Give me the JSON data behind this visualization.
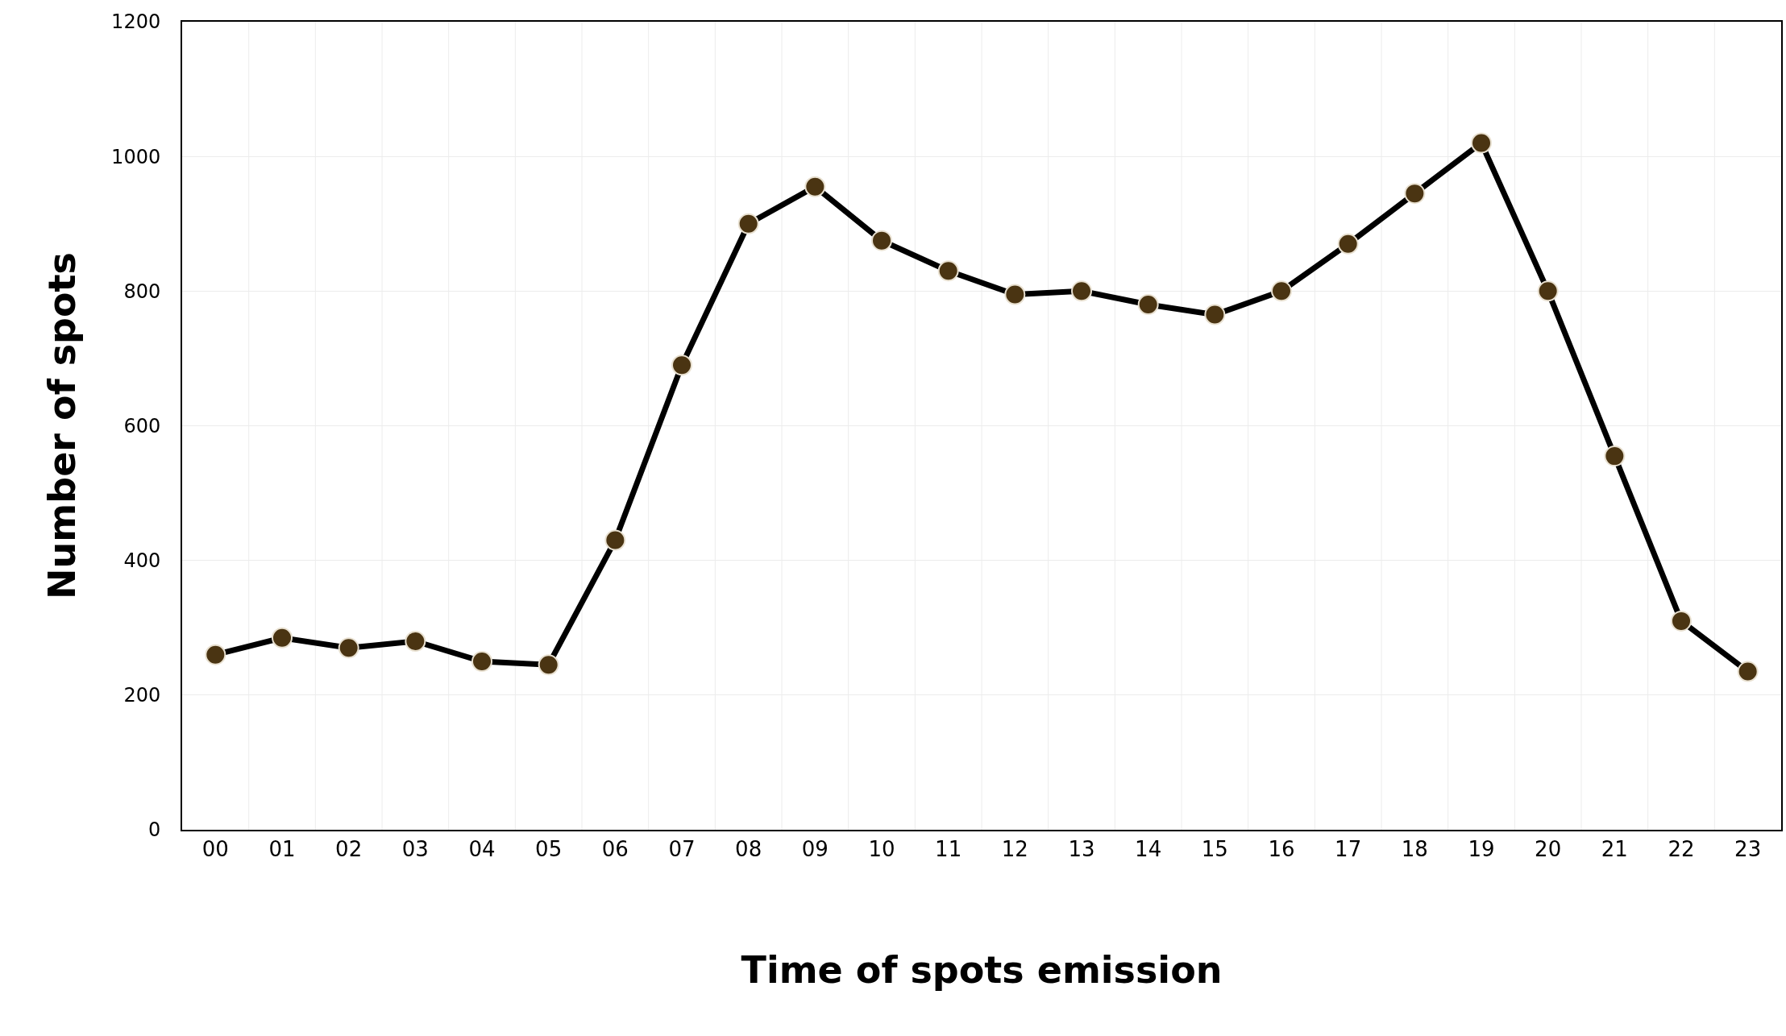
{
  "chart_data": {
    "type": "line",
    "xlabel": "Time of spots emission",
    "ylabel": "Number of spots",
    "categories": [
      "00",
      "01",
      "02",
      "03",
      "04",
      "05",
      "06",
      "07",
      "08",
      "09",
      "10",
      "11",
      "12",
      "13",
      "14",
      "15",
      "16",
      "17",
      "18",
      "19",
      "20",
      "21",
      "22",
      "23"
    ],
    "series": [
      {
        "color": "#000000",
        "values": [
          260,
          285,
          270,
          280,
          250,
          245,
          430,
          690,
          900,
          955,
          875,
          830,
          795,
          800,
          780,
          765,
          800,
          870,
          945,
          1020,
          800,
          555,
          310,
          235
        ]
      }
    ],
    "ylim": [
      0,
      1200
    ],
    "yticks": [
      0,
      200,
      400,
      600,
      800,
      1000,
      1200
    ],
    "grid": true,
    "marker": "circle",
    "line_style": "solid",
    "legend": false
  }
}
